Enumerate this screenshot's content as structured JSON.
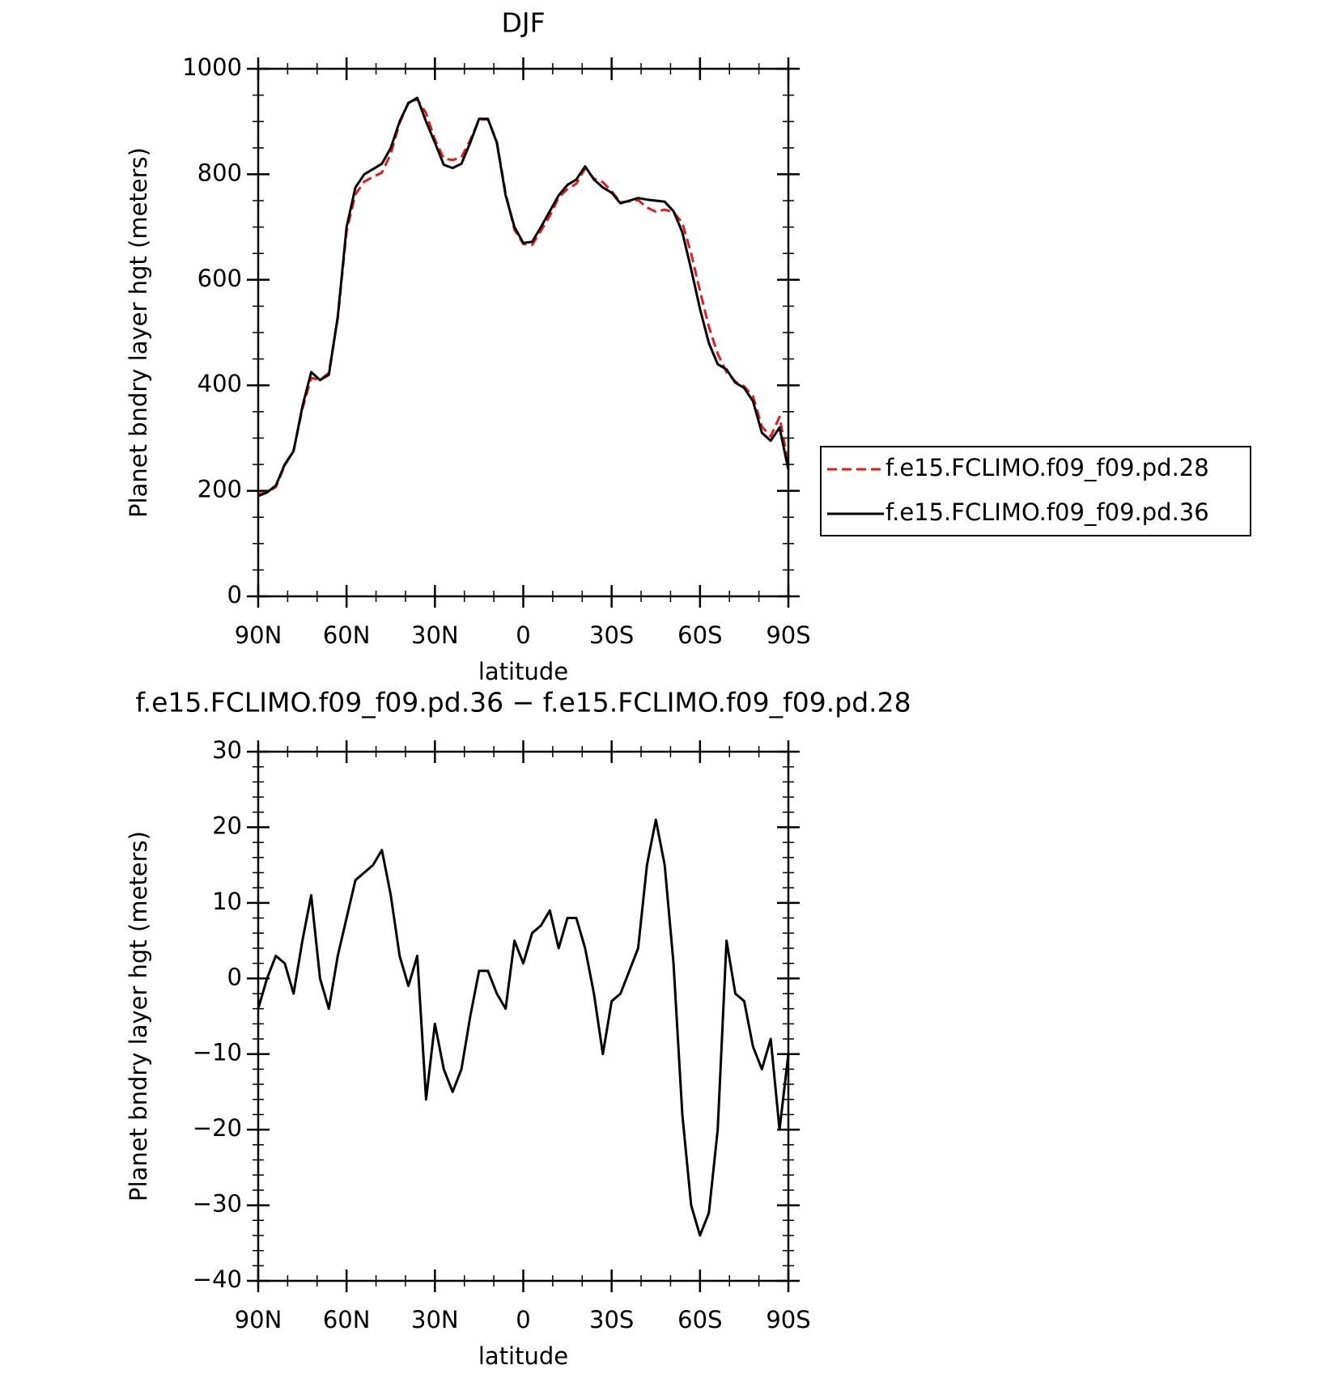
{
  "chart_data": [
    {
      "type": "line",
      "title": "DJF",
      "xlabel": "latitude",
      "ylabel": "Planet bndry layer hgt (meters)",
      "x": [
        90,
        87,
        84,
        81,
        78,
        75,
        72,
        69,
        66,
        63,
        60,
        57,
        54,
        51,
        48,
        45,
        42,
        39,
        36,
        33,
        30,
        27,
        24,
        21,
        18,
        15,
        12,
        9,
        6,
        3,
        0,
        -3,
        -6,
        -9,
        -12,
        -15,
        -18,
        -21,
        -24,
        -27,
        -30,
        -33,
        -36,
        -39,
        -42,
        -45,
        -48,
        -51,
        -54,
        -57,
        -60,
        -63,
        -66,
        -69,
        -72,
        -75,
        -78,
        -81,
        -84,
        -87,
        -90
      ],
      "series": [
        {
          "name": "f.e15.FCLIMO.f09_f09.pd.28",
          "color": "#e41a1c",
          "dash": true,
          "values": [
            194,
            197,
            207,
            248,
            277,
            355,
            414,
            410,
            424,
            527,
            692,
            762,
            786,
            795,
            803,
            839,
            897,
            936,
            942,
            916,
            866,
            830,
            827,
            832,
            865,
            904,
            904,
            862,
            764,
            695,
            668,
            666,
            693,
            721,
            756,
            772,
            782,
            811,
            792,
            785,
            768,
            747,
            749,
            751,
            737,
            729,
            733,
            728,
            708,
            650,
            579,
            511,
            460,
            425,
            407,
            398,
            379,
            322,
            303,
            340,
            250
          ]
        },
        {
          "name": "f.e15.FCLIMO.f09_f09.pd.36",
          "color": "#000000",
          "dash": false,
          "values": [
            190,
            197,
            210,
            250,
            275,
            360,
            425,
            410,
            420,
            530,
            700,
            775,
            800,
            810,
            820,
            850,
            900,
            935,
            945,
            900,
            860,
            818,
            812,
            820,
            860,
            905,
            905,
            860,
            760,
            700,
            670,
            672,
            700,
            730,
            760,
            780,
            790,
            815,
            790,
            775,
            765,
            745,
            750,
            755,
            752,
            750,
            748,
            730,
            690,
            620,
            545,
            480,
            440,
            430,
            405,
            395,
            370,
            310,
            295,
            320,
            240
          ]
        }
      ],
      "xlim": [
        90,
        -90
      ],
      "xticks": [
        {
          "value": 90,
          "label": "90N"
        },
        {
          "value": 60,
          "label": "60N"
        },
        {
          "value": 30,
          "label": "30N"
        },
        0,
        {
          "value": -30,
          "label": "30S"
        },
        {
          "value": -60,
          "label": "60S"
        },
        {
          "value": -90,
          "label": "90S"
        }
      ],
      "ylim": [
        0,
        1000
      ],
      "yticks": [
        0,
        200,
        400,
        600,
        800,
        1000
      ],
      "legend": "right"
    },
    {
      "type": "line",
      "title": "f.e15.FCLIMO.f09_f09.pd.36 − f.e15.FCLIMO.f09_f09.pd.28",
      "xlabel": "latitude",
      "ylabel": "Planet bndry layer hgt (meters)",
      "x": [
        90,
        87,
        84,
        81,
        78,
        75,
        72,
        69,
        66,
        63,
        60,
        57,
        54,
        51,
        48,
        45,
        42,
        39,
        36,
        33,
        30,
        27,
        24,
        21,
        18,
        15,
        12,
        9,
        6,
        3,
        0,
        -3,
        -6,
        -9,
        -12,
        -15,
        -18,
        -21,
        -24,
        -27,
        -30,
        -33,
        -36,
        -39,
        -42,
        -45,
        -48,
        -51,
        -54,
        -57,
        -60,
        -63,
        -66,
        -69,
        -72,
        -75,
        -78,
        -81,
        -84,
        -87,
        -90
      ],
      "series": [
        {
          "color": "#000000",
          "dash": false,
          "values": [
            -4,
            0,
            3,
            2,
            -2,
            5,
            11,
            0,
            -4,
            3,
            8,
            13,
            14,
            15,
            17,
            11,
            3,
            -1,
            3,
            -16,
            -6,
            -12,
            -15,
            -12,
            -5,
            1,
            1,
            -2,
            -4,
            5,
            2,
            6,
            7,
            9,
            4,
            8,
            8,
            4,
            -2,
            -10,
            -3,
            -2,
            1,
            4,
            15,
            21,
            15,
            2,
            -18,
            -30,
            -34,
            -31,
            -20,
            5,
            -2,
            -3,
            -9,
            -12,
            -8,
            -20,
            -10
          ]
        }
      ],
      "xlim": [
        90,
        -90
      ],
      "xticks": [
        {
          "value": 90,
          "label": "90N"
        },
        {
          "value": 60,
          "label": "60N"
        },
        {
          "value": 30,
          "label": "30N"
        },
        0,
        {
          "value": -30,
          "label": "30S"
        },
        {
          "value": -60,
          "label": "60S"
        },
        {
          "value": -90,
          "label": "90S"
        }
      ],
      "ylim": [
        -40,
        30
      ],
      "yticks": [
        {
          "value": -40,
          "label": "−40"
        },
        {
          "value": -30,
          "label": "−30"
        },
        {
          "value": -20,
          "label": "−20"
        },
        {
          "value": -10,
          "label": "−10"
        },
        0,
        10,
        20,
        30
      ]
    }
  ]
}
